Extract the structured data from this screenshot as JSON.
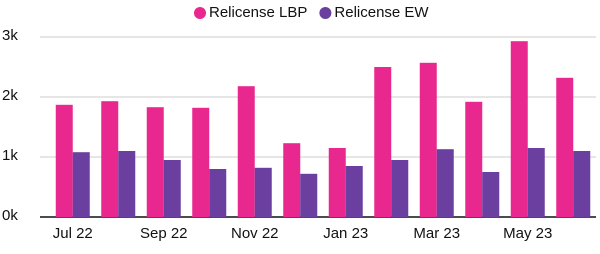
{
  "chart_data": {
    "type": "bar",
    "categories": [
      "Jul 22",
      null,
      "Sep 22",
      null,
      "Nov 22",
      null,
      "Jan 23",
      null,
      "Mar 23",
      null,
      "May 23",
      null
    ],
    "series": [
      {
        "name": "Relicense LBP",
        "color": "#e8288f",
        "values": [
          1870,
          1930,
          1830,
          1820,
          2180,
          1230,
          1150,
          2500,
          2570,
          1920,
          2930,
          2320
        ]
      },
      {
        "name": "Relicense EW",
        "color": "#6b3fa0",
        "values": [
          1080,
          1100,
          950,
          800,
          820,
          720,
          850,
          950,
          1130,
          750,
          1150,
          1100
        ]
      }
    ],
    "ylim": [
      0,
      3000
    ],
    "yticks": [
      {
        "value": 0,
        "label": "0k"
      },
      {
        "value": 1000,
        "label": "1k"
      },
      {
        "value": 2000,
        "label": "2k"
      },
      {
        "value": 3000,
        "label": "3k"
      }
    ],
    "grid": true
  }
}
